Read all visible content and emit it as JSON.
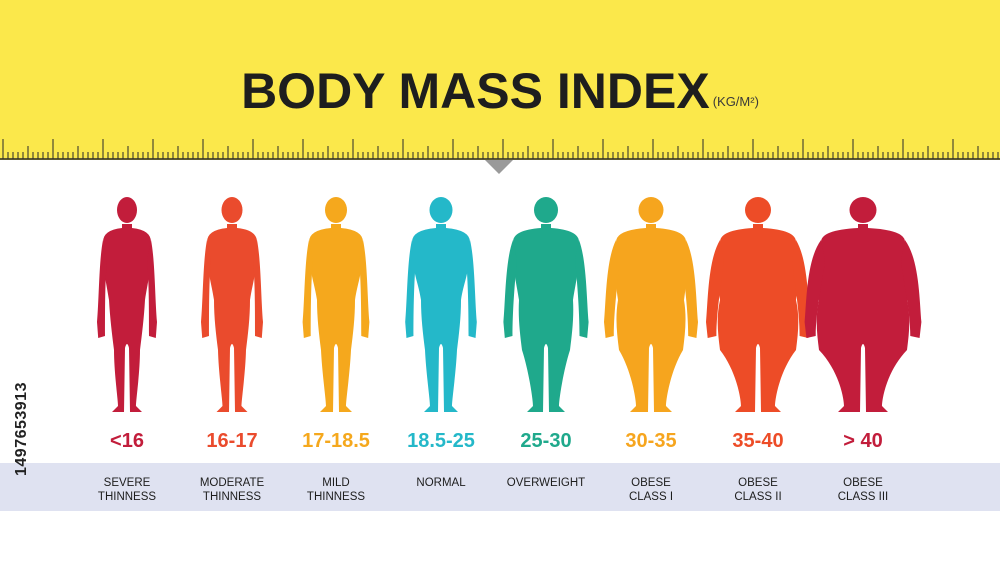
{
  "title": "BODY MASS INDEX",
  "unit": "(KG/M²)",
  "stock_id": "1497653913",
  "categories": [
    {
      "range": "<16",
      "label": "SEVERE\nTHINNESS",
      "color": "#c21d3b"
    },
    {
      "range": "16-17",
      "label": "MODERATE\nTHINNESS",
      "color": "#ea4b2d"
    },
    {
      "range": "17-18.5",
      "label": "MILD\nTHINNESS",
      "color": "#f5a81d"
    },
    {
      "range": "18.5-25",
      "label": "NORMAL",
      "color": "#24b8c9"
    },
    {
      "range": "25-30",
      "label": "OVERWEIGHT",
      "color": "#1fa98c"
    },
    {
      "range": "30-35",
      "label": "OBESE\nCLASS I",
      "color": "#f6a51e"
    },
    {
      "range": "35-40",
      "label": "OBESE\nCLASS II",
      "color": "#ed4c27"
    },
    {
      "range": "> 40",
      "label": "OBESE\nCLASS III",
      "color": "#c21d3b"
    }
  ],
  "colors": {
    "header": "#fbe84b",
    "band": "#dfe2f1",
    "pointer": "#9a9a9a"
  }
}
